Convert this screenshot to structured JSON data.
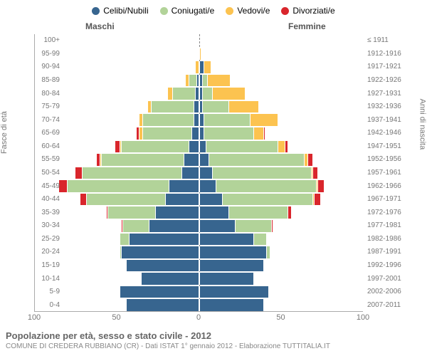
{
  "legend": [
    {
      "label": "Celibi/Nubili",
      "color": "#37658f"
    },
    {
      "label": "Coniugati/e",
      "color": "#b2d399"
    },
    {
      "label": "Vedovi/e",
      "color": "#fcc350"
    },
    {
      "label": "Divorziati/e",
      "color": "#d9262c"
    }
  ],
  "headers": {
    "male": "Maschi",
    "female": "Femmine"
  },
  "axis_left": "Fasce di età",
  "axis_right": "Anni di nascita",
  "colors": {
    "celibi": "#37658f",
    "coniugati": "#b2d399",
    "vedovi": "#fcc350",
    "divorziati": "#d9262c",
    "border": "#ffffff",
    "grid": "#888888",
    "text": "#777777"
  },
  "xlim": 100,
  "xticks": [
    100,
    50,
    0,
    50,
    100
  ],
  "title": "Popolazione per età, sesso e stato civile - 2012",
  "subtitle": "COMUNE DI CREDERA RUBBIANO (CR) - Dati ISTAT 1° gennaio 2012 - Elaborazione TUTTITALIA.IT",
  "rows": [
    {
      "age": "100+",
      "year": "≤ 1911",
      "m": [
        0,
        0,
        0,
        0
      ],
      "f": [
        0,
        0,
        0,
        0
      ]
    },
    {
      "age": "95-99",
      "year": "1912-1916",
      "m": [
        0,
        0,
        0,
        0
      ],
      "f": [
        0,
        0,
        1,
        0
      ]
    },
    {
      "age": "90-94",
      "year": "1917-1921",
      "m": [
        0,
        0,
        2,
        0
      ],
      "f": [
        3,
        0,
        4,
        0
      ]
    },
    {
      "age": "85-89",
      "year": "1922-1926",
      "m": [
        1,
        5,
        2,
        0
      ],
      "f": [
        2,
        3,
        14,
        0
      ]
    },
    {
      "age": "80-84",
      "year": "1927-1931",
      "m": [
        2,
        14,
        3,
        0
      ],
      "f": [
        2,
        6,
        20,
        0
      ]
    },
    {
      "age": "75-79",
      "year": "1932-1936",
      "m": [
        3,
        26,
        2,
        0
      ],
      "f": [
        2,
        16,
        18,
        0
      ]
    },
    {
      "age": "70-74",
      "year": "1937-1941",
      "m": [
        3,
        31,
        2,
        0
      ],
      "f": [
        3,
        28,
        17,
        0
      ]
    },
    {
      "age": "65-69",
      "year": "1942-1946",
      "m": [
        4,
        30,
        2,
        2
      ],
      "f": [
        3,
        30,
        6,
        1
      ]
    },
    {
      "age": "60-64",
      "year": "1947-1951",
      "m": [
        6,
        41,
        1,
        3
      ],
      "f": [
        4,
        44,
        4,
        2
      ]
    },
    {
      "age": "55-59",
      "year": "1952-1956",
      "m": [
        9,
        50,
        1,
        2
      ],
      "f": [
        6,
        58,
        2,
        3
      ]
    },
    {
      "age": "50-54",
      "year": "1957-1961",
      "m": [
        10,
        61,
        0,
        4
      ],
      "f": [
        8,
        60,
        1,
        3
      ]
    },
    {
      "age": "45-49",
      "year": "1962-1966",
      "m": [
        18,
        62,
        0,
        5
      ],
      "f": [
        10,
        61,
        1,
        4
      ]
    },
    {
      "age": "40-44",
      "year": "1967-1971",
      "m": [
        20,
        48,
        0,
        4
      ],
      "f": [
        14,
        55,
        1,
        4
      ]
    },
    {
      "age": "35-39",
      "year": "1972-1976",
      "m": [
        26,
        29,
        0,
        1
      ],
      "f": [
        18,
        36,
        0,
        2
      ]
    },
    {
      "age": "30-34",
      "year": "1977-1981",
      "m": [
        30,
        16,
        0,
        1
      ],
      "f": [
        22,
        22,
        0,
        1
      ]
    },
    {
      "age": "25-29",
      "year": "1982-1986",
      "m": [
        42,
        6,
        0,
        0
      ],
      "f": [
        33,
        8,
        0,
        0
      ]
    },
    {
      "age": "20-24",
      "year": "1987-1991",
      "m": [
        47,
        1,
        0,
        0
      ],
      "f": [
        41,
        2,
        0,
        0
      ]
    },
    {
      "age": "15-19",
      "year": "1992-1996",
      "m": [
        44,
        0,
        0,
        0
      ],
      "f": [
        39,
        0,
        0,
        0
      ]
    },
    {
      "age": "10-14",
      "year": "1997-2001",
      "m": [
        35,
        0,
        0,
        0
      ],
      "f": [
        33,
        0,
        0,
        0
      ]
    },
    {
      "age": "5-9",
      "year": "2002-2006",
      "m": [
        48,
        0,
        0,
        0
      ],
      "f": [
        42,
        0,
        0,
        0
      ]
    },
    {
      "age": "0-4",
      "year": "2007-2011",
      "m": [
        44,
        0,
        0,
        0
      ],
      "f": [
        39,
        0,
        0,
        0
      ]
    }
  ]
}
